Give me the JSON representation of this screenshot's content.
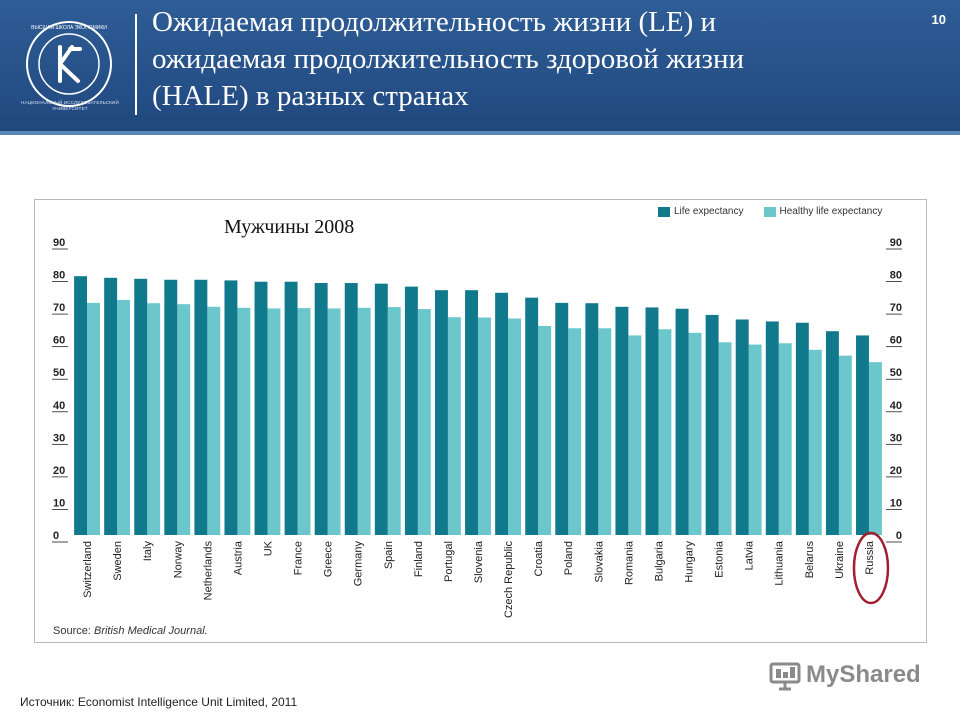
{
  "header": {
    "title_lines": [
      "Ожидаемая продолжительность жизни (LE) и",
      "ожидаемая продолжительность здоровой  жизни",
      "(HALE) в разных странах"
    ],
    "slide_number": "10",
    "logo_text": "НАЦИОНАЛЬНЫЙ ИССЛЕДОВАТЕЛЬСКИЙ УНИВЕРСИТЕТ",
    "logo_ring_text": "ВЫСШАЯ ШКОЛА ЭКОНОМИКИ"
  },
  "footer": {
    "source": "Источник: Economist  Intelligence Unit Limited, 2011",
    "watermark": "MyShared"
  },
  "colors": {
    "header_bg": "#20487f",
    "le": "#11798c",
    "hale": "#6cc7cd",
    "highlight": "#a11f2f"
  },
  "chart_data": {
    "type": "bar",
    "title": "Мужчины 2008",
    "source_label": "Source:",
    "source_name": "British Medical Journal.",
    "legend": [
      "Life expectancy",
      "Healthy life expectancy"
    ],
    "ylim": [
      0,
      90
    ],
    "yticks": [
      "0",
      "10",
      "20",
      "30",
      "40",
      "50",
      "60",
      "70",
      "80",
      "90"
    ],
    "highlight_category": "Russia",
    "categories": [
      "Switzerland",
      "Sweden",
      "Italy",
      "Norway",
      "Netherlands",
      "Austria",
      "UK",
      "France",
      "Greece",
      "Germany",
      "Spain",
      "Finland",
      "Portugal",
      "Slovenia",
      "Czech Republic",
      "Croatia",
      "Poland",
      "Slovakia",
      "Romania",
      "Bulgaria",
      "Hungary",
      "Estonia",
      "Latvia",
      "Lithuania",
      "Belarus",
      "Ukraine",
      "Russia"
    ],
    "series": [
      {
        "name": "Life expectancy",
        "values": [
          79.5,
          79.0,
          78.7,
          78.4,
          78.4,
          78.2,
          77.8,
          77.8,
          77.4,
          77.4,
          77.2,
          76.3,
          75.2,
          75.2,
          74.4,
          72.9,
          71.3,
          71.2,
          70.1,
          69.9,
          69.5,
          67.6,
          66.2,
          65.6,
          65.2,
          62.6,
          61.3
        ]
      },
      {
        "name": "Healthy life expectancy",
        "values": [
          71.3,
          72.2,
          71.2,
          70.9,
          70.1,
          69.8,
          69.6,
          69.7,
          69.6,
          69.8,
          70.0,
          69.4,
          66.9,
          66.8,
          66.5,
          64.2,
          63.5,
          63.5,
          61.3,
          63.2,
          62.1,
          59.2,
          58.5,
          58.9,
          56.9,
          55.1,
          53.1
        ]
      }
    ]
  }
}
